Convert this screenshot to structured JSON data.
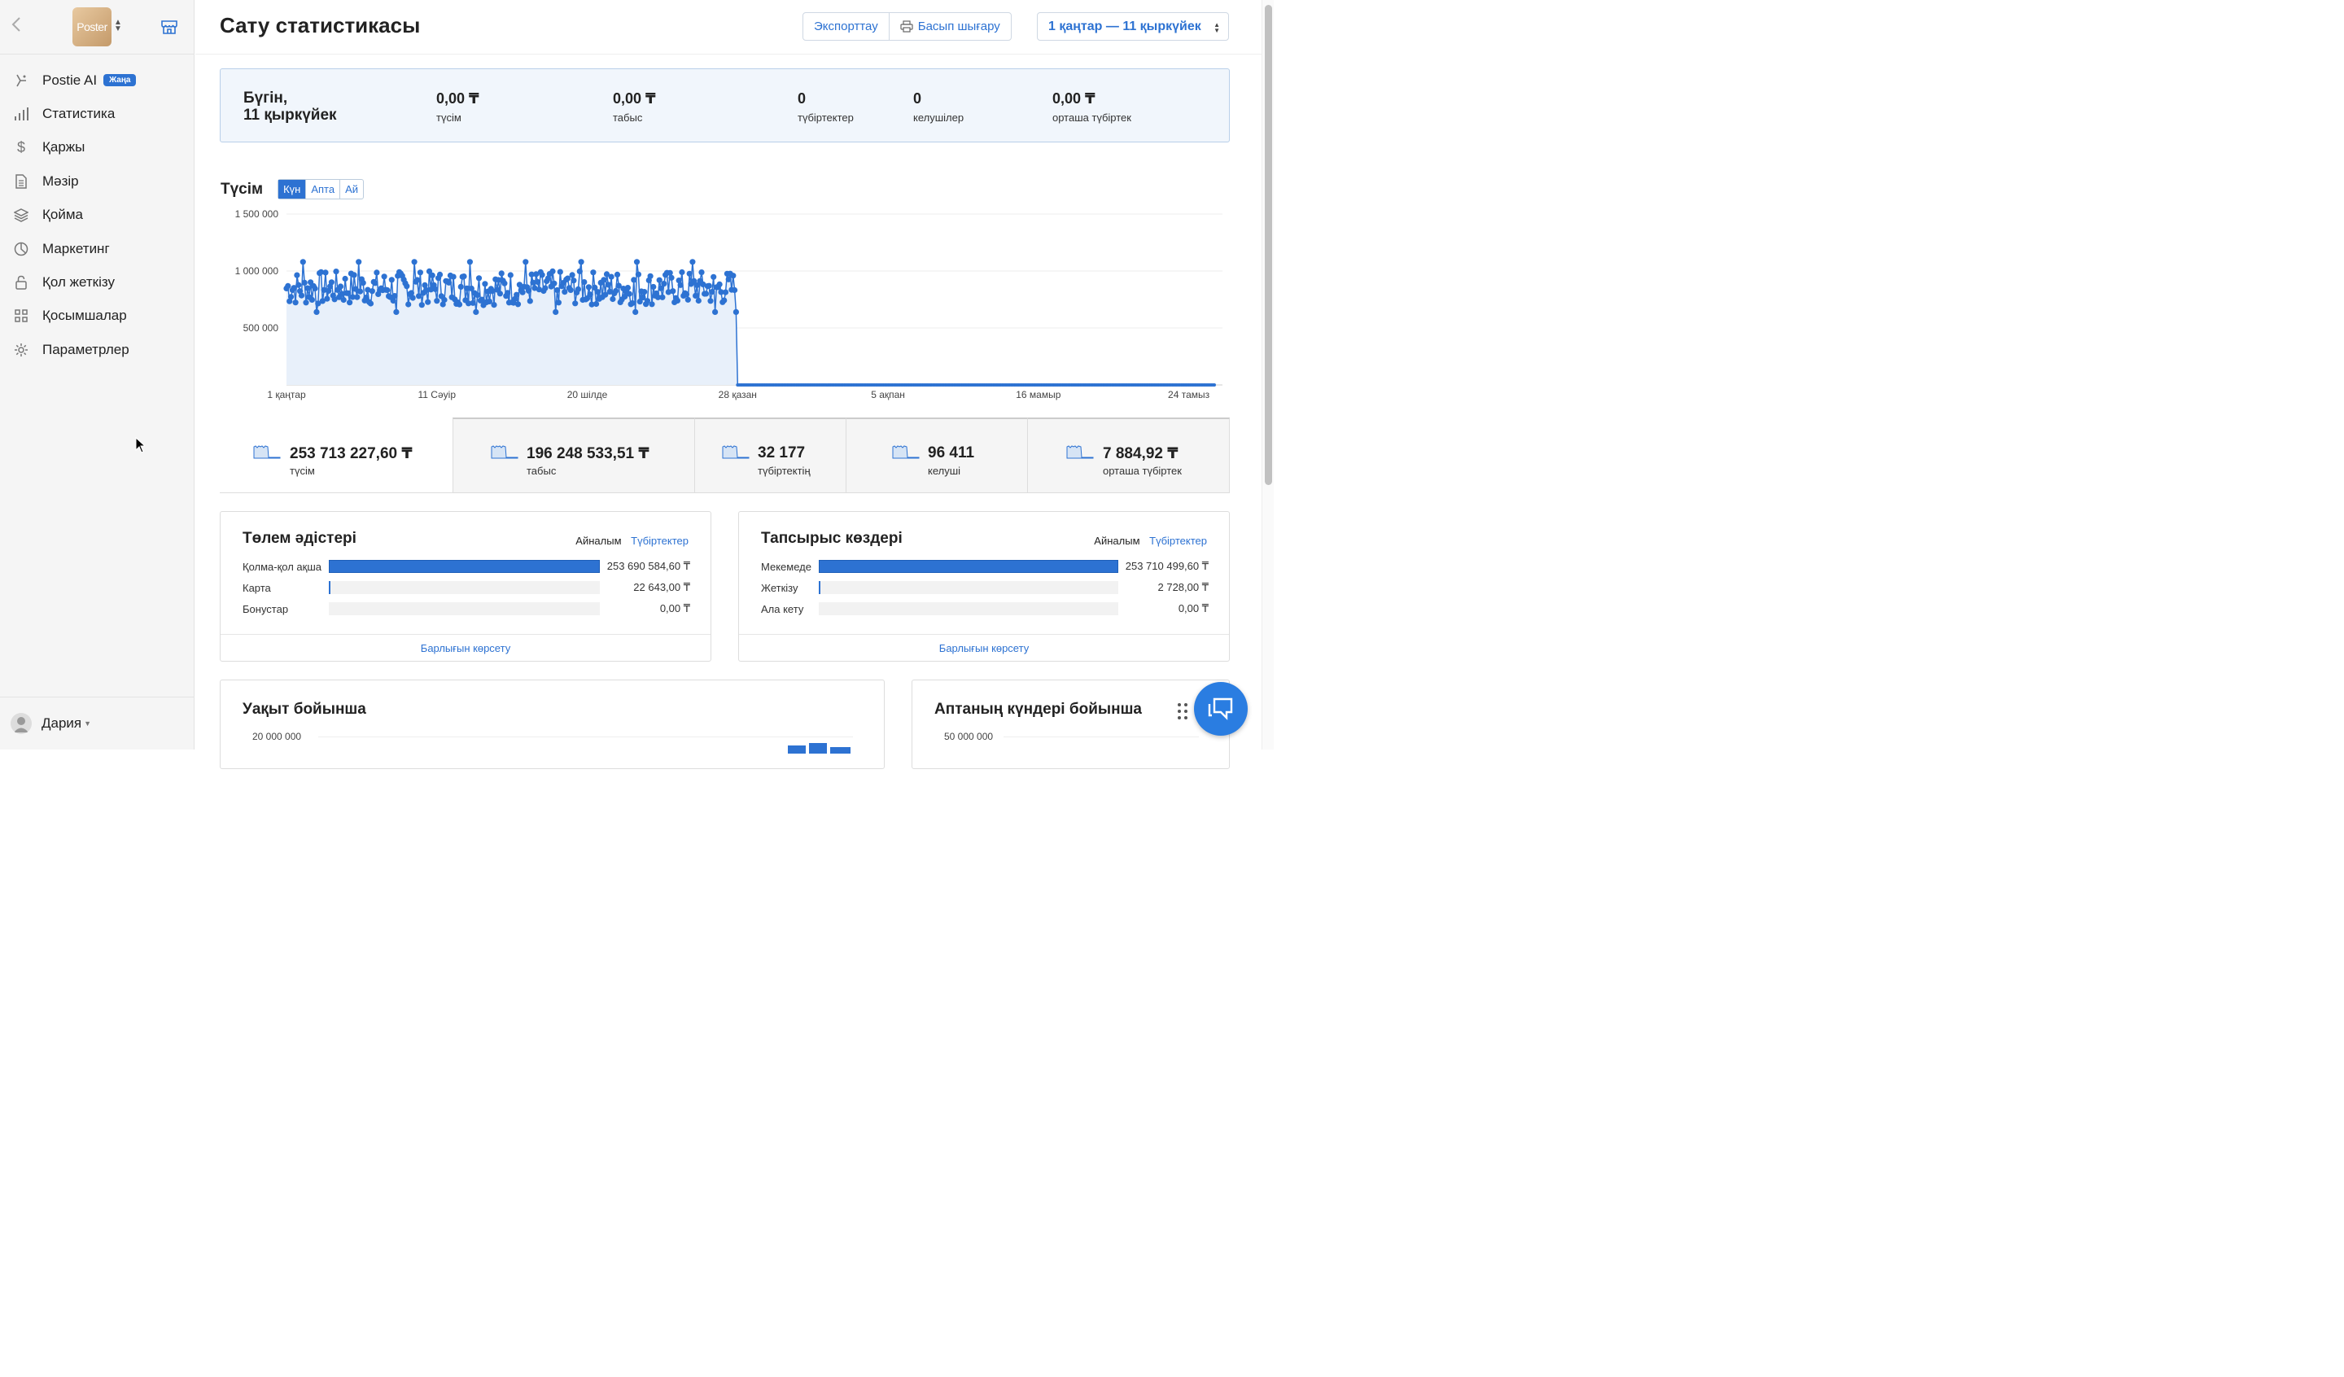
{
  "sidebar": {
    "logo_text": "Poster",
    "items": [
      {
        "label": "Postie AI",
        "icon": "ai-icon",
        "badge": "Жаңа"
      },
      {
        "label": "Статистика",
        "icon": "bar-chart-icon"
      },
      {
        "label": "Қаржы",
        "icon": "dollar-icon"
      },
      {
        "label": "Мәзір",
        "icon": "document-icon"
      },
      {
        "label": "Қойма",
        "icon": "layers-icon"
      },
      {
        "label": "Маркетинг",
        "icon": "pie-icon"
      },
      {
        "label": "Қол жеткізу",
        "icon": "lock-icon"
      },
      {
        "label": "Қосымшалар",
        "icon": "grid-icon"
      },
      {
        "label": "Параметрлер",
        "icon": "gear-icon"
      }
    ],
    "user": "Дария"
  },
  "header": {
    "title": "Сату статистикасы",
    "export_label": "Экспорттау",
    "print_label": "Басып шығару",
    "date_range": "1 қаңтар — 11 қыркүйек"
  },
  "today": {
    "label_line1": "Бүгін,",
    "label_line2": "11 қыркүйек",
    "stats": [
      {
        "value": "0,00 ₸",
        "label": "түсім"
      },
      {
        "value": "0,00 ₸",
        "label": "табыс"
      },
      {
        "value": "0",
        "label": "түбіртектер"
      },
      {
        "value": "0",
        "label": "келушілер"
      },
      {
        "value": "0,00 ₸",
        "label": "орташа түбіртек"
      }
    ]
  },
  "revenue": {
    "title": "Түсім",
    "periods": [
      "Күн",
      "Апта",
      "Ай"
    ],
    "active_period": "Күн"
  },
  "chart_data": {
    "type": "area",
    "title": "Түсім",
    "y_ticks": [
      "1 500 000",
      "1 000 000",
      "500 000"
    ],
    "x_ticks": [
      "1 қаңтар",
      "11 Сәуір",
      "20 шілде",
      "28 қазан",
      "5 ақпан",
      "16 мамыр",
      "24 тамыз"
    ],
    "ylim": [
      0,
      1500000
    ],
    "series": [
      {
        "values_note_start": "1 қаңтар",
        "active_days": 300,
        "zero_days": 318,
        "typical_min": 700000,
        "typical_max": 1000000,
        "peak": 1080000,
        "last_active_value": 640000
      }
    ],
    "color": "#2d72d2"
  },
  "summary": [
    {
      "value": "253 713 227,60 ₸",
      "label": "түсім"
    },
    {
      "value": "196 248 533,51 ₸",
      "label": "табыс"
    },
    {
      "value": "32 177",
      "label": "түбіртектің"
    },
    {
      "value": "96 411",
      "label": "келуші"
    },
    {
      "value": "7 884,92 ₸",
      "label": "орташа түбіртек"
    }
  ],
  "payments": {
    "title": "Төлем әдістері",
    "tab_on": "Айналым",
    "tab_off": "Түбіртектер",
    "rows": [
      {
        "label": "Қолма-қол ақша",
        "value": "253 690 584,60 ₸",
        "share": 1.0
      },
      {
        "label": "Карта",
        "value": "22 643,00 ₸",
        "share": 0.002
      },
      {
        "label": "Бонустар",
        "value": "0,00 ₸",
        "share": 0
      }
    ],
    "footer": "Барлығын көрсету"
  },
  "sources": {
    "title": "Тапсырыс көздері",
    "tab_on": "Айналым",
    "tab_off": "Түбіртектер",
    "rows": [
      {
        "label": "Мекемеде",
        "value": "253 710 499,60 ₸",
        "share": 1.0
      },
      {
        "label": "Жеткізу",
        "value": "2 728,00 ₸",
        "share": 0.002
      },
      {
        "label": "Ала кету",
        "value": "0,00 ₸",
        "share": 0
      }
    ],
    "footer": "Барлығын көрсету"
  },
  "by_time": {
    "title": "Уақыт бойынша",
    "y_top": "20 000 000"
  },
  "by_weekday": {
    "title": "Аптаның күндері бойынша",
    "y_top": "50 000 000"
  }
}
